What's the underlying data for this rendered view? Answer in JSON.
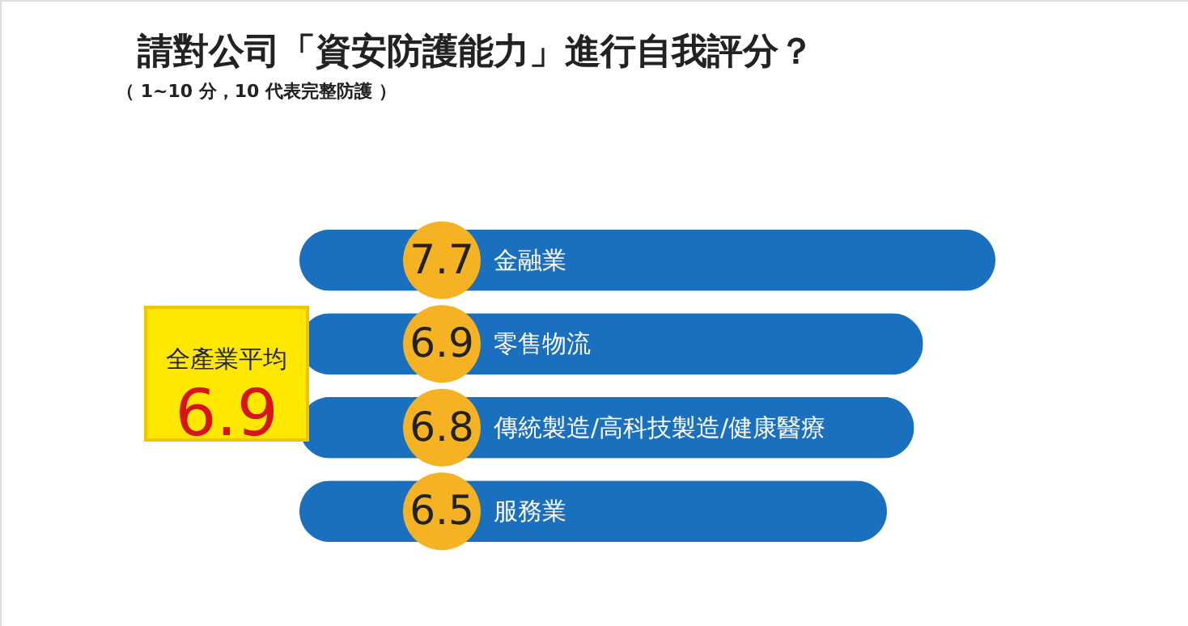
{
  "chart_data": {
    "type": "bar",
    "orientation": "horizontal",
    "title": "請對公司「資安防護能力」進行自我評分？",
    "subtitle": "（ 1~10 分，10 代表完整防護 ）",
    "categories": [
      "金融業",
      "零售物流",
      "傳統製造/高科技製造/健康醫療",
      "服務業"
    ],
    "values": [
      7.7,
      6.9,
      6.8,
      6.5
    ],
    "color": "#1a6fbf",
    "data_labels": true,
    "annotations": [
      "全產業平均",
      "6.9"
    ]
  }
}
